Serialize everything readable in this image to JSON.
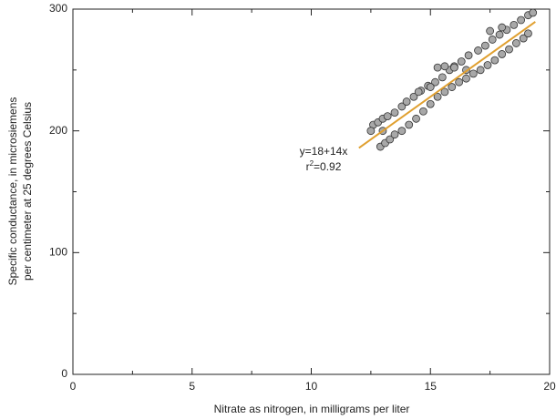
{
  "chart_data": {
    "type": "scatter",
    "xlabel": "Nitrate as nitrogen, in milligrams per liter",
    "ylabel": [
      "Specific conductance, in microsiemens",
      "per centimeter at 25 degrees Celsius"
    ],
    "xlim": [
      0,
      20
    ],
    "ylim": [
      0,
      300
    ],
    "xticks": [
      0,
      5,
      10,
      15,
      20
    ],
    "yticks": [
      0,
      100,
      200,
      300
    ],
    "xminor_ticks": [
      2.5,
      7.5,
      12.5,
      17.5
    ],
    "yminor_ticks": [
      50,
      150,
      250
    ],
    "equation": "y=18+14x",
    "r2_label": {
      "base": "r",
      "sup": "2",
      "rest": "=0.92"
    },
    "trendline": {
      "intercept": 18,
      "slope": 14,
      "x_start": 12,
      "x_end": 19.4,
      "color": "#e0a030"
    },
    "marker_color": "#a8a8a8",
    "x": [
      12.6,
      12.8,
      13.0,
      13.2,
      13.5,
      13.8,
      14.0,
      14.3,
      14.6,
      14.9,
      15.2,
      15.5,
      15.8,
      16.0,
      16.3,
      16.6,
      17.0,
      17.3,
      17.6,
      17.9,
      18.2,
      18.5,
      18.8,
      19.1,
      19.3,
      12.9,
      13.1,
      13.3,
      13.5,
      13.8,
      14.1,
      14.4,
      14.7,
      15.0,
      15.3,
      15.6,
      15.9,
      16.2,
      16.5,
      16.8,
      17.1,
      17.4,
      17.7,
      18.0,
      18.3,
      18.6,
      18.9,
      19.1,
      15.3,
      15.6,
      16.0,
      12.5,
      13.0,
      14.5,
      15.0,
      17.5,
      18.0,
      16.5
    ],
    "y": [
      205,
      207,
      210,
      212,
      215,
      220,
      224,
      228,
      233,
      237,
      240,
      244,
      250,
      253,
      257,
      262,
      266,
      270,
      275,
      279,
      283,
      287,
      291,
      295,
      297,
      187,
      190,
      193,
      197,
      200,
      205,
      210,
      216,
      222,
      228,
      232,
      236,
      240,
      243,
      247,
      250,
      254,
      258,
      263,
      267,
      272,
      276,
      280,
      252,
      253,
      252,
      200,
      200,
      232,
      236,
      282,
      285,
      250
    ]
  }
}
